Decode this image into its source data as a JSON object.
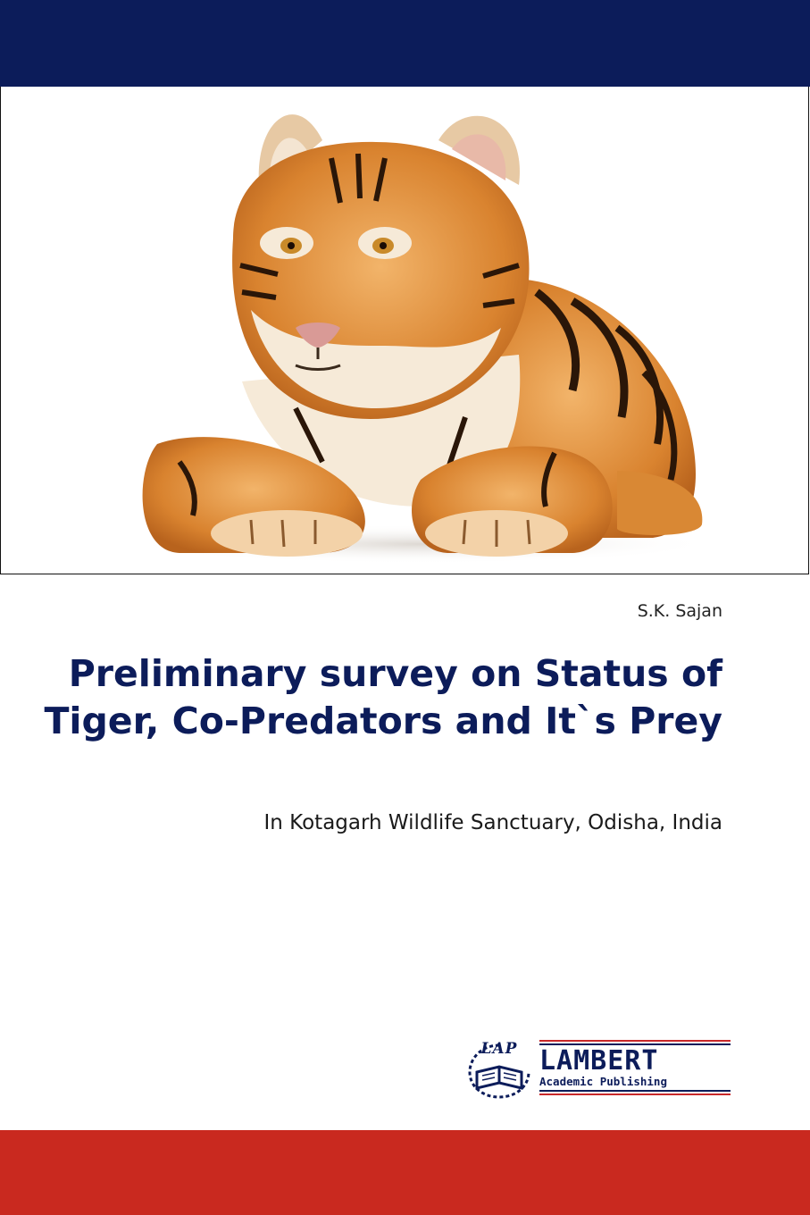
{
  "cover": {
    "author": "S.K. Sajan",
    "title": "Preliminary survey on Status of Tiger, Co-Predators and It`s Prey",
    "subtitle": "In Kotagarh Wildlife Sanctuary, Odisha, India",
    "image": "tiger-cub-photo"
  },
  "publisher": {
    "emblem_text": "LAP",
    "name": "LAMBERT",
    "tagline": "Academic Publishing"
  },
  "colors": {
    "navy": "#0c1c5a",
    "red": "#c9291f",
    "white": "#ffffff"
  }
}
